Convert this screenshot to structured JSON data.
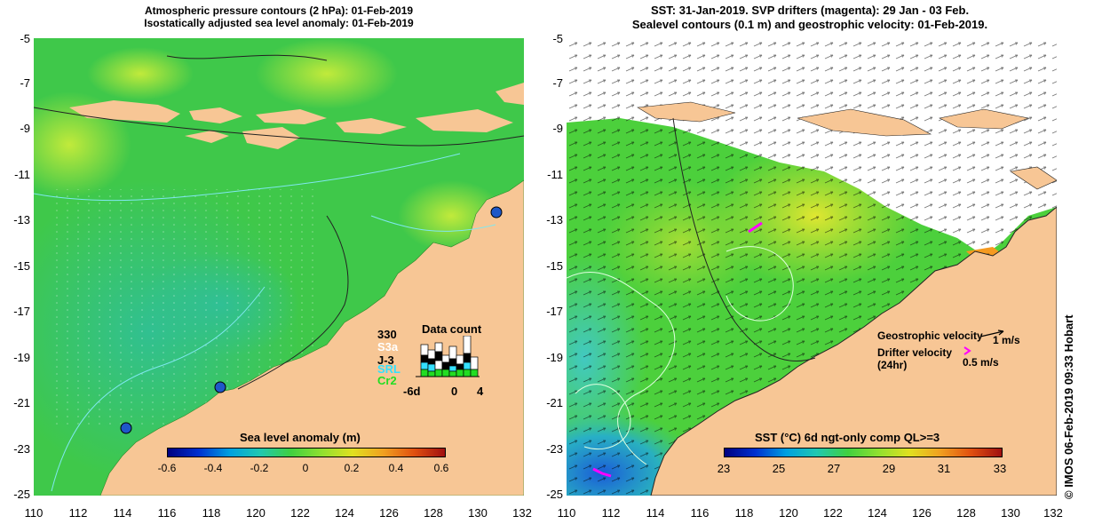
{
  "left_panel": {
    "title_line1": "Atmospheric pressure contours (2 hPa): 01-Feb-2019",
    "title_line2": "Isostatically adjusted sea level anomaly: 01-Feb-2019",
    "colorbar": {
      "title": "Sea level anomaly (m)",
      "ticks": [
        "-0.6",
        "-0.4",
        "-0.2",
        "0",
        "0.2",
        "0.4",
        "0.6"
      ]
    },
    "data_count": {
      "title": "Data count",
      "max_label": "330",
      "satellites": [
        {
          "name": "S3a",
          "color": "#ffffff"
        },
        {
          "name": "J-3",
          "color": "#000000"
        },
        {
          "name": "SRL",
          "color": "#33e0ff"
        },
        {
          "name": "Cr2",
          "color": "#22dd22"
        }
      ],
      "axis_left": "-6d",
      "axis_mid": "0",
      "axis_right": "4"
    }
  },
  "right_panel": {
    "title_line1": "SST: 31-Jan-2019. SVP drifters (magenta): 29 Jan - 03 Feb.",
    "title_line2": "Sealevel contours (0.1 m) and geostrophic velocity: 01-Feb-2019.",
    "colorbar": {
      "title": "SST (°C) 6d ngt-only comp QL>=3",
      "ticks": [
        "23",
        "25",
        "27",
        "29",
        "31",
        "33"
      ]
    },
    "legend": {
      "geostrophic_label": "Geostrophic velocity",
      "geostrophic_scale": "1 m/s",
      "drifter_label_line1": "Drifter velocity",
      "drifter_label_line2": "(24hr)",
      "drifter_scale": "0.5 m/s",
      "drifter_color": "#ff00ff"
    }
  },
  "axes": {
    "y_ticks": [
      "-5",
      "-7",
      "-9",
      "-11",
      "-13",
      "-15",
      "-17",
      "-19",
      "-21",
      "-23",
      "-25"
    ],
    "x_ticks": [
      "110",
      "112",
      "114",
      "116",
      "118",
      "120",
      "122",
      "124",
      "126",
      "128",
      "130",
      "132"
    ]
  },
  "colors": {
    "land": "#f7c695",
    "ocean_green": "#48d34a",
    "ocean_yellowgreen": "#b4e83c",
    "shelf_teal": "#39c8a8",
    "sla_contour": "#7fe8f0"
  },
  "credit": "© IMOS 06-Feb-2019 09:33 Hobart"
}
